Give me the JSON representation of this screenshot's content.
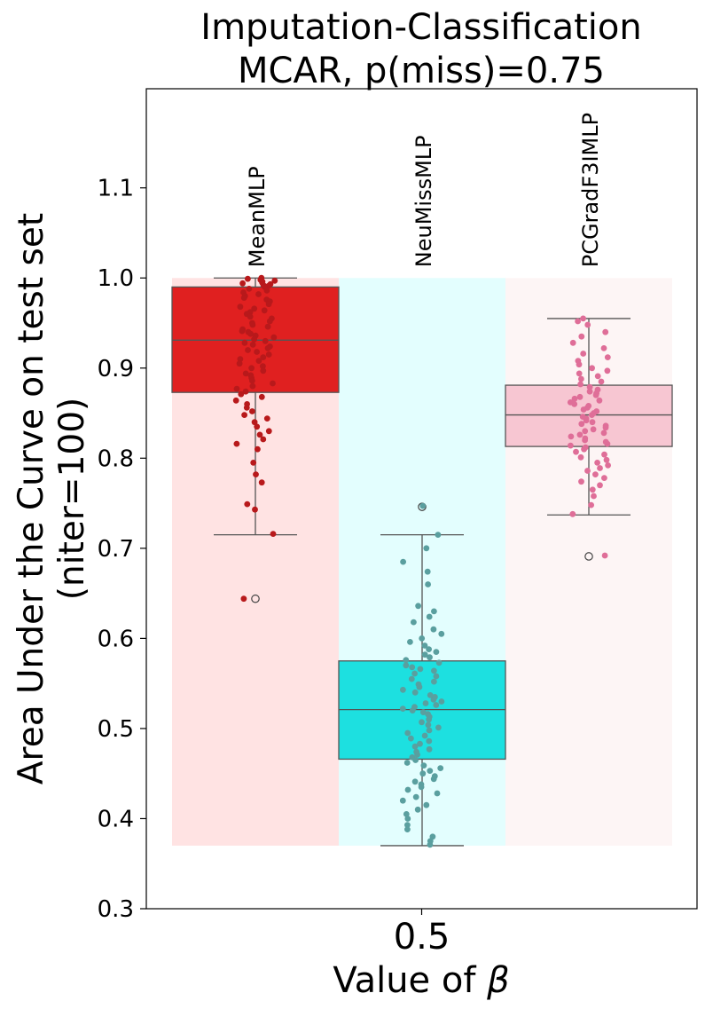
{
  "chart_data": {
    "type": "box",
    "title": [
      "Imputation-Classification",
      "MCAR, p(miss)=0.75"
    ],
    "xlabel": "Value of β",
    "ylabel": [
      "Area Under the Curve on test set",
      "(niter=100)"
    ],
    "categories": [
      "0.5"
    ],
    "ylim": [
      0.3,
      1.21
    ],
    "yticks": [
      "0.3",
      "0.4",
      "0.5",
      "0.6",
      "0.7",
      "0.8",
      "0.9",
      "1.0",
      "1.1"
    ],
    "grid": false,
    "background_band_range": [
      0.37,
      1.0
    ],
    "series": [
      {
        "name": "MeanMLP",
        "box_color": "#e02020",
        "band_color": "#ffe3e3",
        "point_color": "#b8191b",
        "whisker_low": 0.715,
        "q1": 0.873,
        "median": 0.931,
        "q3": 0.99,
        "whisker_high": 1.0,
        "outliers": [
          0.644
        ],
        "points": [
          1.0,
          0.999,
          0.998,
          0.997,
          0.996,
          0.995,
          0.994,
          0.993,
          0.992,
          0.991,
          0.99,
          0.988,
          0.986,
          0.984,
          0.982,
          0.98,
          0.978,
          0.976,
          0.974,
          0.971,
          0.968,
          0.966,
          0.964,
          0.962,
          0.96,
          0.957,
          0.955,
          0.952,
          0.95,
          0.948,
          0.946,
          0.943,
          0.941,
          0.94,
          0.938,
          0.936,
          0.934,
          0.932,
          0.93,
          0.928,
          0.926,
          0.924,
          0.922,
          0.92,
          0.918,
          0.915,
          0.912,
          0.91,
          0.908,
          0.905,
          0.902,
          0.9,
          0.897,
          0.894,
          0.892,
          0.889,
          0.886,
          0.883,
          0.88,
          0.877,
          0.874,
          0.871,
          0.868,
          0.864,
          0.86,
          0.856,
          0.852,
          0.848,
          0.844,
          0.84,
          0.835,
          0.83,
          0.826,
          0.821,
          0.816,
          0.81,
          0.795,
          0.782,
          0.773,
          0.749,
          0.743,
          0.716,
          0.644
        ]
      },
      {
        "name": "NeuMissMLP",
        "box_color": "#1de0e0",
        "band_color": "#e3fefe",
        "point_color": "#5a9f9f",
        "whisker_low": 0.37,
        "q1": 0.466,
        "median": 0.521,
        "q3": 0.575,
        "whisker_high": 0.715,
        "outliers": [
          0.746
        ],
        "points": [
          0.747,
          0.715,
          0.7,
          0.685,
          0.674,
          0.66,
          0.636,
          0.63,
          0.624,
          0.618,
          0.61,
          0.605,
          0.6,
          0.596,
          0.592,
          0.588,
          0.585,
          0.582,
          0.579,
          0.576,
          0.573,
          0.57,
          0.568,
          0.566,
          0.564,
          0.561,
          0.558,
          0.555,
          0.552,
          0.549,
          0.546,
          0.543,
          0.54,
          0.537,
          0.535,
          0.532,
          0.53,
          0.528,
          0.526,
          0.524,
          0.522,
          0.52,
          0.518,
          0.516,
          0.513,
          0.51,
          0.507,
          0.504,
          0.501,
          0.498,
          0.495,
          0.492,
          0.489,
          0.486,
          0.483,
          0.48,
          0.477,
          0.474,
          0.471,
          0.468,
          0.465,
          0.462,
          0.459,
          0.456,
          0.453,
          0.45,
          0.447,
          0.444,
          0.441,
          0.438,
          0.435,
          0.432,
          0.428,
          0.424,
          0.42,
          0.415,
          0.41,
          0.405,
          0.4,
          0.393,
          0.388,
          0.38,
          0.375,
          0.371
        ]
      },
      {
        "name": "PCGradF3IMLP",
        "box_color": "#f7c6d2",
        "band_color": "#fdf5f5",
        "point_color": "#df6e98",
        "whisker_low": 0.737,
        "q1": 0.813,
        "median": 0.848,
        "q3": 0.881,
        "whisker_high": 0.955,
        "outliers": [
          0.691
        ],
        "points": [
          0.955,
          0.952,
          0.948,
          0.94,
          0.935,
          0.928,
          0.922,
          0.916,
          0.912,
          0.908,
          0.904,
          0.9,
          0.897,
          0.894,
          0.891,
          0.888,
          0.885,
          0.882,
          0.879,
          0.876,
          0.874,
          0.872,
          0.87,
          0.868,
          0.866,
          0.864,
          0.862,
          0.86,
          0.858,
          0.856,
          0.854,
          0.852,
          0.85,
          0.848,
          0.846,
          0.844,
          0.842,
          0.84,
          0.838,
          0.836,
          0.834,
          0.832,
          0.83,
          0.828,
          0.826,
          0.824,
          0.822,
          0.82,
          0.818,
          0.816,
          0.814,
          0.812,
          0.81,
          0.807,
          0.804,
          0.801,
          0.798,
          0.795,
          0.792,
          0.789,
          0.786,
          0.782,
          0.778,
          0.774,
          0.77,
          0.765,
          0.758,
          0.748,
          0.738,
          0.692
        ]
      }
    ]
  }
}
